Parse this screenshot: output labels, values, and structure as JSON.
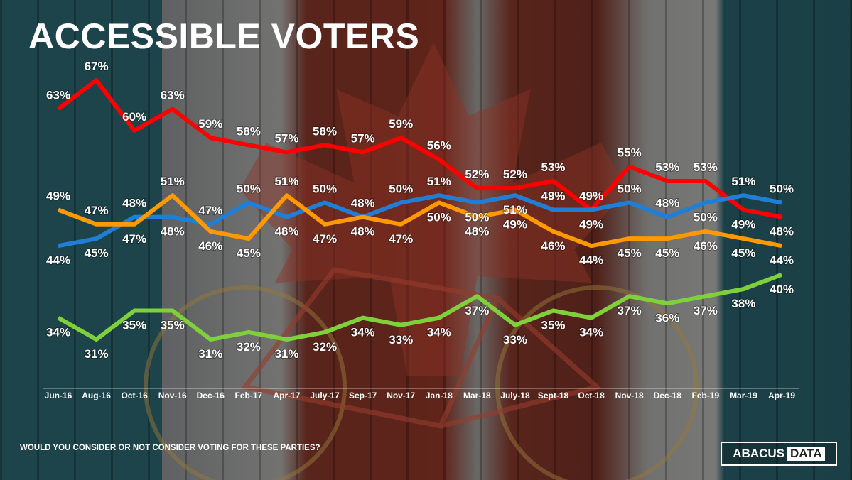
{
  "title": "ACCESSIBLE VOTERS",
  "footer_question": "WOULD YOU CONSIDER OR NOT CONSIDER VOTING FOR THESE PARTIES?",
  "logo": {
    "word1": "ABACUS",
    "word2": "DATA"
  },
  "chart_data": {
    "type": "line",
    "title": "ACCESSIBLE VOTERS",
    "categories": [
      "Jun-16",
      "Aug-16",
      "Oct-16",
      "Nov-16",
      "Dec-16",
      "Feb-17",
      "Apr-17",
      "July-17",
      "Sep-17",
      "Nov-17",
      "Jan-18",
      "Mar-18",
      "July-18",
      "Sept-18",
      "Oct-18",
      "Nov-18",
      "Dec-18",
      "Feb-19",
      "Mar-19",
      "Apr-19"
    ],
    "value_suffix": "%",
    "ylim": [
      28,
      70
    ],
    "grid": false,
    "legend": "none",
    "series": [
      {
        "color": "#ff0000",
        "values": [
          63,
          67,
          60,
          63,
          59,
          58,
          57,
          58,
          57,
          59,
          56,
          52,
          52,
          53,
          49,
          55,
          53,
          53,
          49,
          48
        ]
      },
      {
        "color": "#1f7fd6",
        "values": [
          44,
          45,
          48,
          48,
          47,
          50,
          48,
          50,
          48,
          50,
          51,
          50,
          51,
          49,
          49,
          50,
          48,
          50,
          51,
          50
        ]
      },
      {
        "color": "#ff9900",
        "values": [
          49,
          47,
          47,
          51,
          46,
          45,
          51,
          47,
          48,
          47,
          50,
          48,
          49,
          46,
          44,
          45,
          45,
          46,
          45,
          44
        ]
      },
      {
        "color": "#7fd13b",
        "values": [
          34,
          31,
          35,
          35,
          31,
          32,
          31,
          32,
          34,
          33,
          34,
          37,
          33,
          35,
          34,
          37,
          36,
          37,
          38,
          40
        ]
      }
    ]
  }
}
